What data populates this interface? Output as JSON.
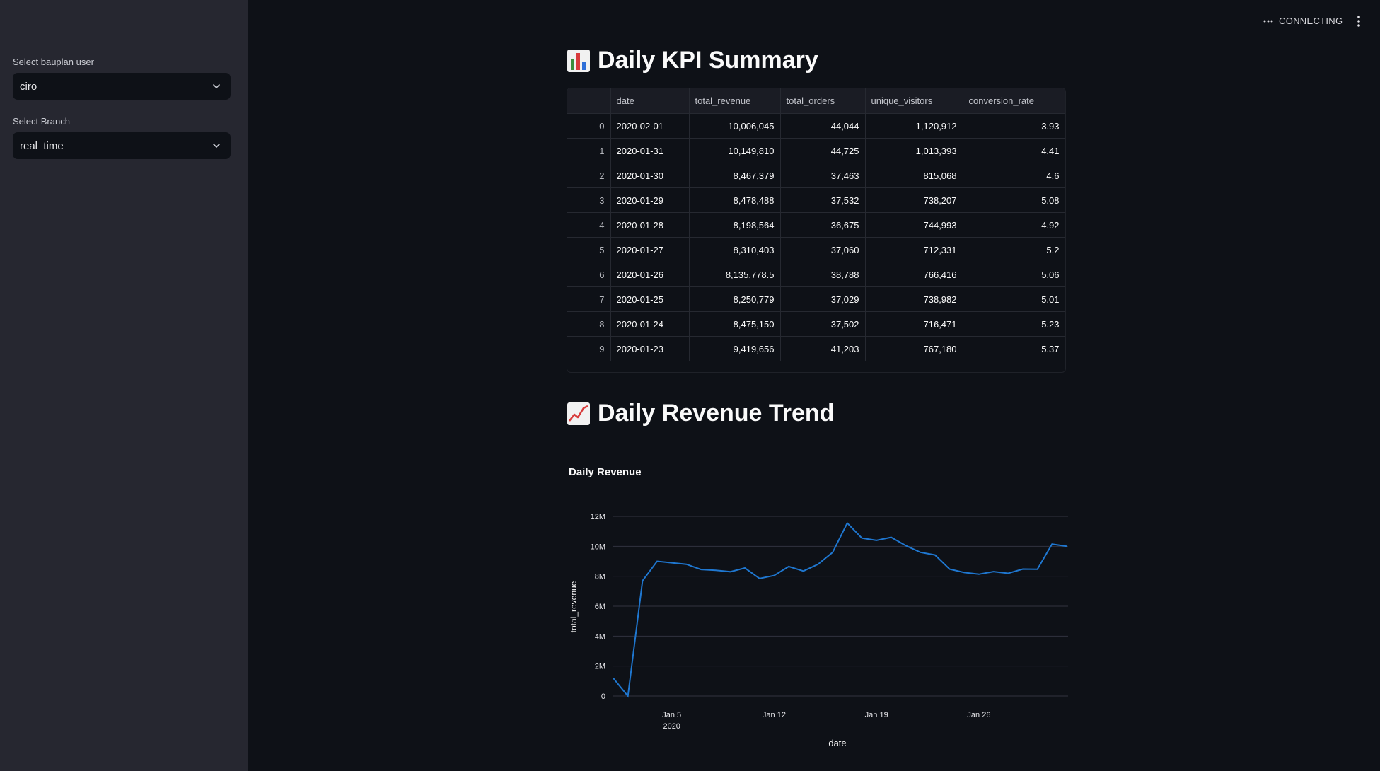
{
  "sidebar": {
    "user_label": "Select bauplan user",
    "user_value": "ciro",
    "branch_label": "Select Branch",
    "branch_value": "real_time"
  },
  "topbar": {
    "status": "CONNECTING",
    "menu_icon": "kebab-menu-icon"
  },
  "kpi_section": {
    "emoji": "bar-chart-emoji",
    "title": "Daily KPI Summary",
    "columns": [
      "",
      "date",
      "total_revenue",
      "total_orders",
      "unique_visitors",
      "conversion_rate"
    ],
    "rows": [
      [
        "0",
        "2020-02-01",
        "10,006,045",
        "44,044",
        "1,120,912",
        "3.93"
      ],
      [
        "1",
        "2020-01-31",
        "10,149,810",
        "44,725",
        "1,013,393",
        "4.41"
      ],
      [
        "2",
        "2020-01-30",
        "8,467,379",
        "37,463",
        "815,068",
        "4.6"
      ],
      [
        "3",
        "2020-01-29",
        "8,478,488",
        "37,532",
        "738,207",
        "5.08"
      ],
      [
        "4",
        "2020-01-28",
        "8,198,564",
        "36,675",
        "744,993",
        "4.92"
      ],
      [
        "5",
        "2020-01-27",
        "8,310,403",
        "37,060",
        "712,331",
        "5.2"
      ],
      [
        "6",
        "2020-01-26",
        "8,135,778.5",
        "38,788",
        "766,416",
        "5.06"
      ],
      [
        "7",
        "2020-01-25",
        "8,250,779",
        "37,029",
        "738,982",
        "5.01"
      ],
      [
        "8",
        "2020-01-24",
        "8,475,150",
        "37,502",
        "716,471",
        "5.23"
      ],
      [
        "9",
        "2020-01-23",
        "9,419,656",
        "41,203",
        "767,180",
        "5.37"
      ]
    ]
  },
  "trend_section": {
    "emoji": "chart-increasing-emoji",
    "title": "Daily Revenue Trend"
  },
  "chart_data": {
    "type": "line",
    "title": "Daily Revenue",
    "xlabel": "date",
    "ylabel": "total_revenue",
    "ylim": [
      0,
      12000000
    ],
    "yticks": [
      0,
      2000000,
      4000000,
      6000000,
      8000000,
      10000000,
      12000000
    ],
    "ytick_labels": [
      "0",
      "2M",
      "4M",
      "6M",
      "8M",
      "10M",
      "12M"
    ],
    "xticks": [
      {
        "date": "2020-01-05",
        "label": "Jan 5",
        "sublabel": "2020"
      },
      {
        "date": "2020-01-12",
        "label": "Jan 12",
        "sublabel": ""
      },
      {
        "date": "2020-01-19",
        "label": "Jan 19",
        "sublabel": ""
      },
      {
        "date": "2020-01-26",
        "label": "Jan 26",
        "sublabel": ""
      }
    ],
    "xlim": [
      "2020-01-01",
      "2020-02-01"
    ],
    "color": "#1f77d0",
    "series": [
      {
        "x": [
          "2020-01-01",
          "2020-01-02",
          "2020-01-03",
          "2020-01-04",
          "2020-01-05",
          "2020-01-06",
          "2020-01-07",
          "2020-01-08",
          "2020-01-09",
          "2020-01-10",
          "2020-01-11",
          "2020-01-12",
          "2020-01-13",
          "2020-01-14",
          "2020-01-15",
          "2020-01-16",
          "2020-01-17",
          "2020-01-18",
          "2020-01-19",
          "2020-01-20",
          "2020-01-21",
          "2020-01-22",
          "2020-01-23",
          "2020-01-24",
          "2020-01-25",
          "2020-01-26",
          "2020-01-27",
          "2020-01-28",
          "2020-01-29",
          "2020-01-30",
          "2020-01-31",
          "2020-02-01"
        ],
        "y": [
          1200000,
          0,
          7700000,
          9000000,
          8900000,
          8800000,
          8450000,
          8400000,
          8300000,
          8550000,
          7850000,
          8050000,
          8650000,
          8350000,
          8800000,
          9600000,
          11550000,
          10550000,
          10400000,
          10600000,
          10050000,
          9600000,
          9419656,
          8475150,
          8250779,
          8135778.5,
          8310403,
          8198564,
          8478488,
          8467379,
          10149810,
          10006045
        ]
      }
    ]
  }
}
